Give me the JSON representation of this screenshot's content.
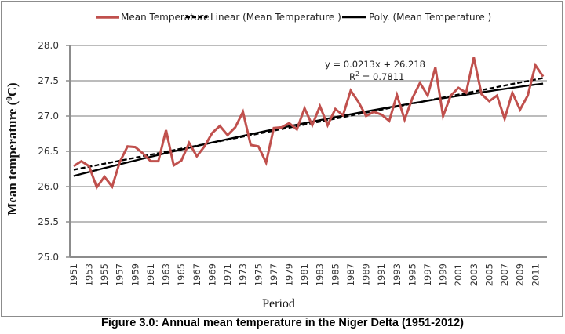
{
  "chart_data": {
    "type": "line",
    "title": "",
    "xlabel": "Period",
    "ylabel": "Mean temperature (0C)",
    "ylabel_main": "Mean temperature (",
    "ylabel_sup": "0",
    "ylabel_end": "C)",
    "ylim": [
      25.0,
      28.0
    ],
    "yticks": [
      "25.0",
      "25.5",
      "26.0",
      "26.5",
      "27.0",
      "27.5",
      "28.0"
    ],
    "grid": true,
    "legend_position": "top",
    "x": [
      1951,
      1952,
      1953,
      1954,
      1955,
      1956,
      1957,
      1958,
      1959,
      1960,
      1961,
      1962,
      1963,
      1964,
      1965,
      1966,
      1967,
      1968,
      1969,
      1970,
      1971,
      1972,
      1973,
      1974,
      1975,
      1976,
      1977,
      1978,
      1979,
      1980,
      1981,
      1982,
      1983,
      1984,
      1985,
      1986,
      1987,
      1988,
      1989,
      1990,
      1991,
      1992,
      1993,
      1994,
      1995,
      1996,
      1997,
      1998,
      1999,
      2000,
      2001,
      2002,
      2003,
      2004,
      2005,
      2006,
      2007,
      2008,
      2009,
      2010,
      2011,
      2012
    ],
    "xtick_labels": [
      "1951",
      "1953",
      "1955",
      "1957",
      "1959",
      "1961",
      "1963",
      "1965",
      "1967",
      "1969",
      "1971",
      "1973",
      "1975",
      "1977",
      "1979",
      "1981",
      "1983",
      "1985",
      "1987",
      "1989",
      "1991",
      "1993",
      "1995",
      "1997",
      "1999",
      "2001",
      "2003",
      "2005",
      "2007",
      "2009",
      "2011"
    ],
    "series": [
      {
        "name": "Mean Temperature",
        "style": "solid",
        "color": "#c0504d",
        "values": [
          26.29,
          26.36,
          26.29,
          25.99,
          26.14,
          26.0,
          26.35,
          26.57,
          26.56,
          26.47,
          26.36,
          26.36,
          26.8,
          26.3,
          26.37,
          26.62,
          26.43,
          26.57,
          26.76,
          26.86,
          26.73,
          26.84,
          27.06,
          26.59,
          26.57,
          26.34,
          26.83,
          26.84,
          26.9,
          26.81,
          27.11,
          26.87,
          27.14,
          26.87,
          27.1,
          27.01,
          27.36,
          27.2,
          27.0,
          27.06,
          27.02,
          26.93,
          27.3,
          26.95,
          27.25,
          27.47,
          27.29,
          27.69,
          27.0,
          27.29,
          27.4,
          27.33,
          27.83,
          27.31,
          27.21,
          27.29,
          26.96,
          27.33,
          27.09,
          27.29,
          27.72,
          27.56
        ]
      },
      {
        "name": "Linear (Mean Temperature )",
        "style": "dashed",
        "color": "#000000",
        "equation": "y = 0.0213x + 26.218",
        "coefficients": {
          "slope": 0.0213,
          "intercept": 26.218
        }
      },
      {
        "name": "Poly. (Mean Temperature )",
        "style": "solid",
        "color": "#000000",
        "coefficients": {
          "a": 26.1216,
          "b": 0.0286,
          "c": -0.000113
        }
      }
    ],
    "annotations": {
      "equation": "y = 0.0213x + 26.218",
      "r2_label": "R",
      "r2_sup": "2",
      "r2_value": " = 0.7811"
    }
  },
  "caption": "Figure 3.0: Annual mean temperature in the Niger Delta (1951-2012)"
}
